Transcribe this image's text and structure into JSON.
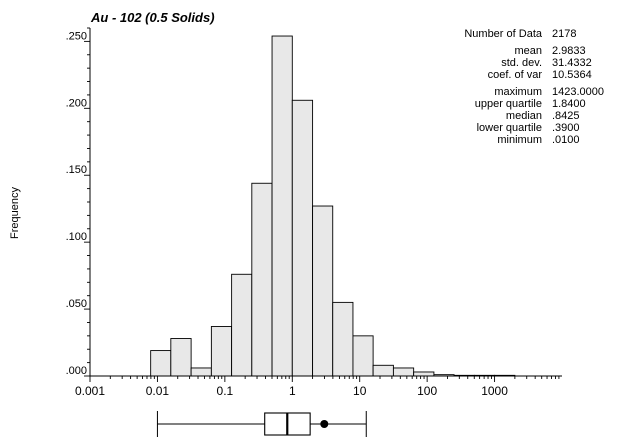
{
  "chart_data": {
    "type": "bar",
    "title": "Au - 102 (0.5 Solids)",
    "ylabel": "Frequency",
    "xlabel": "",
    "xscale": "log",
    "xlim": [
      0.001,
      10000
    ],
    "ylim": [
      0,
      0.26
    ],
    "x_ticks": [
      "0.001",
      "0.01",
      "0.1",
      "1",
      "10",
      "100",
      "1000"
    ],
    "y_ticks": [
      {
        "value": 0.0,
        "label": ".000"
      },
      {
        "value": 0.05,
        "label": ".050"
      },
      {
        "value": 0.1,
        "label": ".100"
      },
      {
        "value": 0.15,
        "label": ".150"
      },
      {
        "value": 0.2,
        "label": ".200"
      },
      {
        "value": 0.25,
        "label": ".250"
      }
    ],
    "bins": [
      {
        "x0": 0.00794,
        "x1": 0.0158,
        "value": 0.019
      },
      {
        "x0": 0.0158,
        "x1": 0.0316,
        "value": 0.028
      },
      {
        "x0": 0.0316,
        "x1": 0.0631,
        "value": 0.006
      },
      {
        "x0": 0.0631,
        "x1": 0.126,
        "value": 0.037
      },
      {
        "x0": 0.126,
        "x1": 0.251,
        "value": 0.076
      },
      {
        "x0": 0.251,
        "x1": 0.501,
        "value": 0.144
      },
      {
        "x0": 0.501,
        "x1": 1.0,
        "value": 0.254
      },
      {
        "x0": 1.0,
        "x1": 2.0,
        "value": 0.206
      },
      {
        "x0": 2.0,
        "x1": 3.98,
        "value": 0.127
      },
      {
        "x0": 3.98,
        "x1": 7.94,
        "value": 0.055
      },
      {
        "x0": 7.94,
        "x1": 15.8,
        "value": 0.03
      },
      {
        "x0": 15.8,
        "x1": 31.6,
        "value": 0.008
      },
      {
        "x0": 31.6,
        "x1": 63.1,
        "value": 0.006
      },
      {
        "x0": 63.1,
        "x1": 126,
        "value": 0.003
      },
      {
        "x0": 126,
        "x1": 251,
        "value": 0.001
      },
      {
        "x0": 251,
        "x1": 501,
        "value": 0.0005
      },
      {
        "x0": 501,
        "x1": 1000,
        "value": 0.0005
      },
      {
        "x0": 1000,
        "x1": 2000,
        "value": 0.0005
      }
    ],
    "boxplot": {
      "whisker_low": 0.01,
      "lower_quartile": 0.39,
      "median": 0.8425,
      "upper_quartile": 1.84,
      "mean": 2.9833,
      "whisker_high": 12.5
    },
    "stats": [
      {
        "label": "Number of Data",
        "value": "2178"
      },
      {
        "label": "mean",
        "value": "2.9833"
      },
      {
        "label": "std. dev.",
        "value": "31.4332"
      },
      {
        "label": "coef. of var",
        "value": "10.5364"
      },
      {
        "label": "maximum",
        "value": "1423.0000"
      },
      {
        "label": "upper quartile",
        "value": "1.8400"
      },
      {
        "label": "median",
        "value": ".8425"
      },
      {
        "label": "lower quartile",
        "value": ".3900"
      },
      {
        "label": "minimum",
        "value": ".0100"
      }
    ],
    "colors": {
      "bar_fill": "#e8e8e8",
      "stroke": "#000000",
      "background": "#ffffff"
    }
  }
}
